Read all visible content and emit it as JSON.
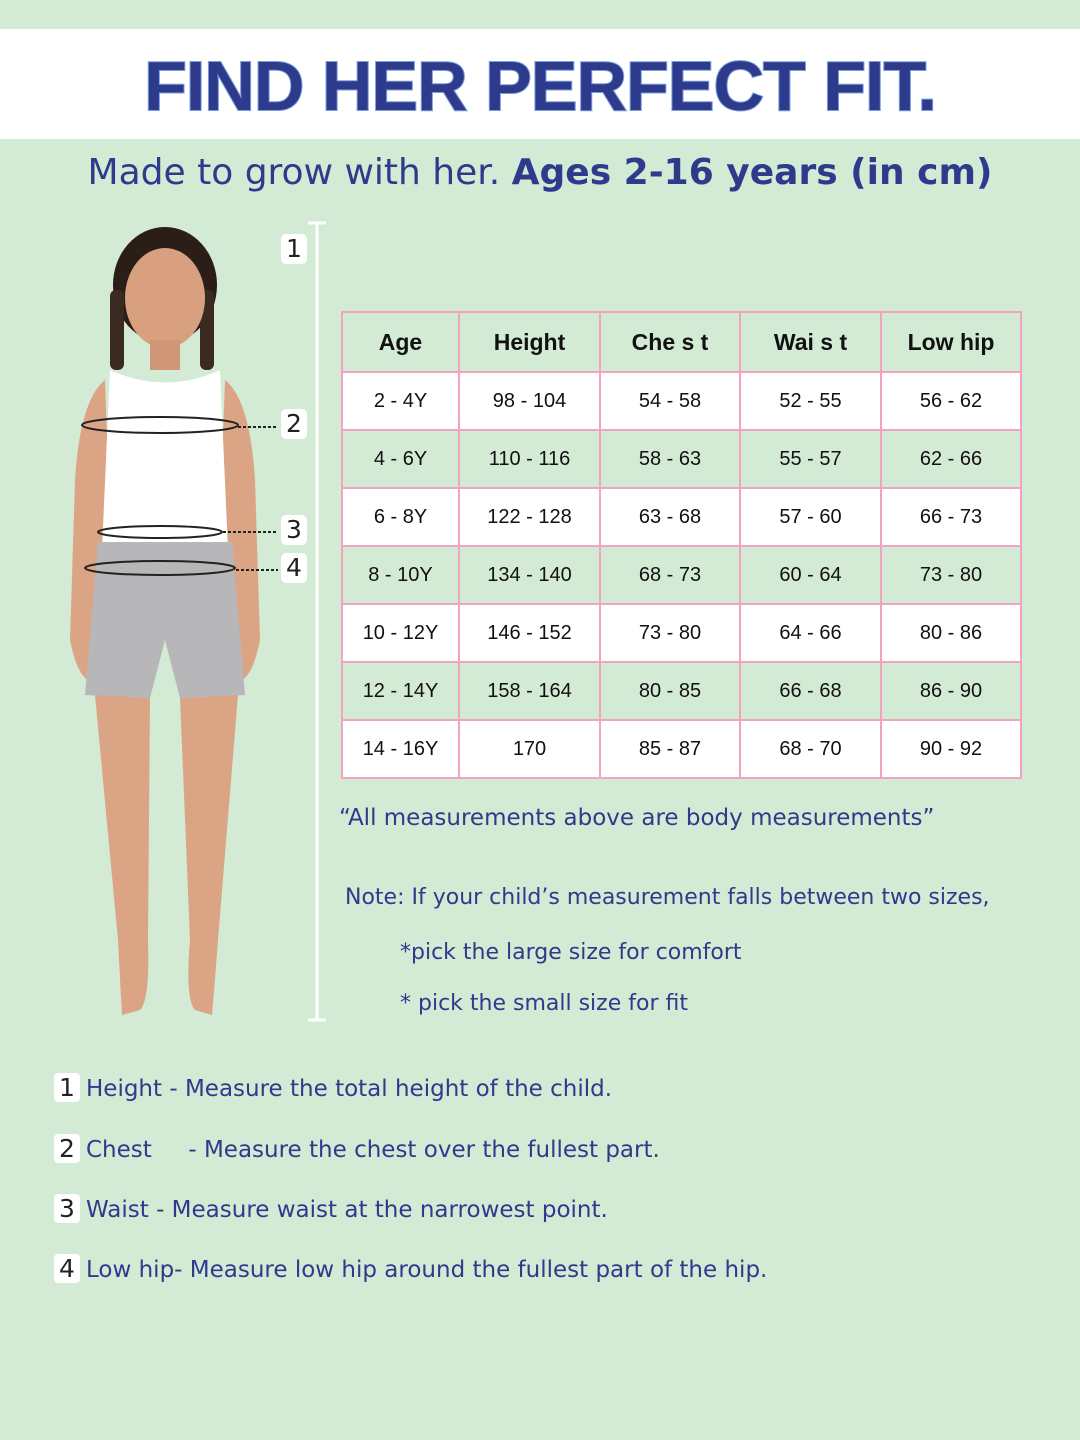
{
  "header": {
    "title": "FIND HER PERFECT FIT.",
    "subtitle_light": "Made to grow with her.",
    "subtitle_bold": "Ages 2-16 years (in cm)"
  },
  "figure": {
    "markers": [
      "1",
      "2",
      "3",
      "4"
    ]
  },
  "table": {
    "headers": [
      "Age",
      "Height",
      "Che s t",
      "Wai s t",
      "Low hip"
    ],
    "rows": [
      [
        "2 - 4Y",
        "98 - 104",
        "54 - 58",
        "52 - 55",
        "56 - 62"
      ],
      [
        "4 - 6Y",
        "110 - 116",
        "58 - 63",
        "55 - 57",
        "62 - 66"
      ],
      [
        "6 - 8Y",
        "122 - 128",
        "63 - 68",
        "57 - 60",
        "66 - 73"
      ],
      [
        "8 - 10Y",
        "134 - 140",
        "68 - 73",
        "60 - 64",
        "73 - 80"
      ],
      [
        "10 - 12Y",
        "146 - 152",
        "73 - 80",
        "64 - 66",
        "80 - 86"
      ],
      [
        "12 - 14Y",
        "158 - 164",
        "80 - 85",
        "66 - 68",
        "86 - 90"
      ],
      [
        "14 - 16Y",
        "170",
        "85 - 87",
        "68 - 70",
        "90 - 92"
      ]
    ]
  },
  "notes": {
    "body_measurements": "“All measurements above are body measurements”",
    "note": "Note: If your child’s measurement falls between two sizes,",
    "tip1": "*pick the large size for comfort",
    "tip2": "* pick the small size for fit"
  },
  "steps": [
    {
      "n": "1",
      "text": "Height - Measure the total height of the child."
    },
    {
      "n": "2",
      "text": "Chest     - Measure the chest over the fullest part."
    },
    {
      "n": "3",
      "text": "Waist - Measure waist at the narrowest point."
    },
    {
      "n": "4",
      "text": "Low hip- Measure low hip around the fullest part of the hip."
    }
  ]
}
